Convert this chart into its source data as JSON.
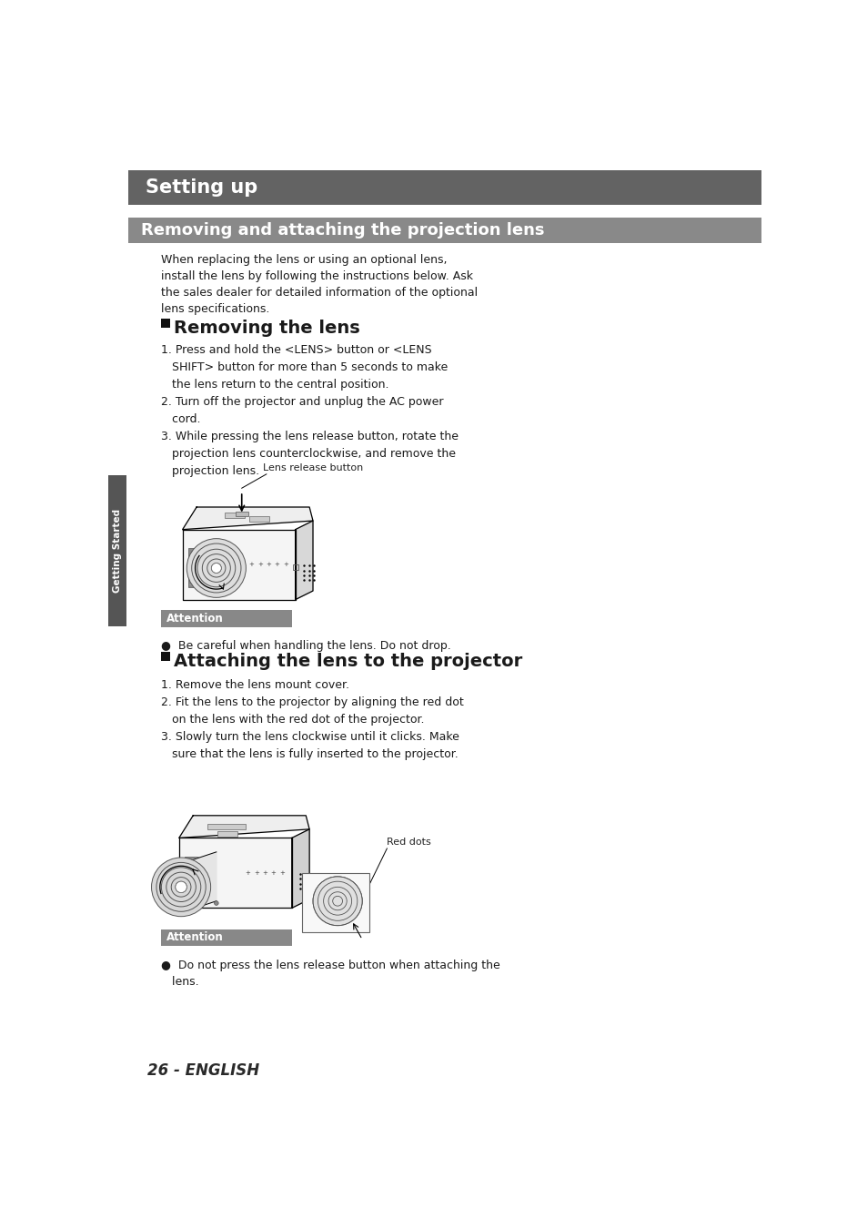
{
  "page_bg": "#ffffff",
  "header_bg": "#636363",
  "header_text": "Setting up",
  "header_text_color": "#ffffff",
  "section_bg": "#898989",
  "section_text": "Removing and attaching the projection lens",
  "section_text_color": "#ffffff",
  "intro_text": "When replacing the lens or using an optional lens,\ninstall the lens by following the instructions below. Ask\nthe sales dealer for detailed information of the optional\nlens specifications.",
  "lens_release_label": "Lens release button",
  "red_dots_label": "Red dots",
  "attention_bg": "#888888",
  "attention_title": "Attention",
  "attention1_text": "●  Be careful when handling the lens. Do not drop.",
  "attention2_text": "●  Do not press the lens release button when attaching the\n   lens.",
  "sidebar_text": "Getting Started",
  "sidebar_bg": "#555555",
  "sidebar_text_color": "#ffffff",
  "page_number": "26 - ENGLISH",
  "text_color": "#1a1a1a",
  "body_font_size": 9.0,
  "steps1_text": "1. Press and hold the <LENS> button or <LENS\n   SHIFT> button for more than 5 seconds to make\n   the lens return to the central position.\n2. Turn off the projector and unplug the AC power\n   cord.\n3. While pressing the lens release button, rotate the\n   projection lens counterclockwise, and remove the\n   projection lens.",
  "steps2_text": "1. Remove the lens mount cover.\n2. Fit the lens to the projector by aligning the red dot\n   on the lens with the red dot of the projector.\n3. Slowly turn the lens clockwise until it clicks. Make\n   sure that the lens is fully inserted to the projector."
}
